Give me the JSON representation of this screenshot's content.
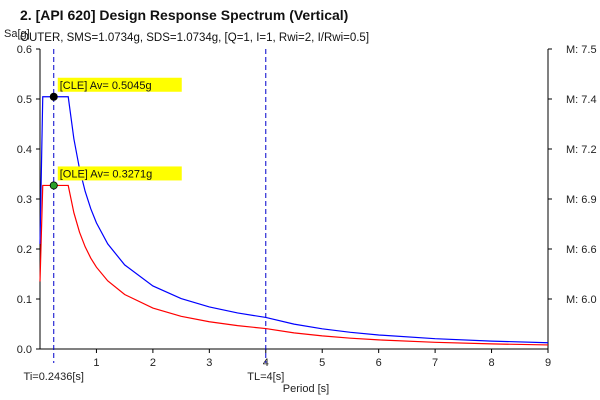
{
  "chart_data": {
    "type": "line",
    "title": "2. [API 620] Design Response Spectrum (Vertical)",
    "subtitle": "OUTER, SMS=1.0734g, SDS=1.0734g, [Q=1, I=1, Rwi=2, I/Rwi=0.5]",
    "xlabel": "Period [s]",
    "ylabel": "Sa[g]",
    "xlim": [
      0,
      9
    ],
    "ylim": [
      0,
      0.6
    ],
    "x_ticks": [
      "1",
      "2",
      "3",
      "4",
      "5",
      "6",
      "7",
      "8",
      "9"
    ],
    "y_ticks": [
      "0.0",
      "0.1",
      "0.2",
      "0.3",
      "0.4",
      "0.5",
      "0.6"
    ],
    "grid": false,
    "colors": {
      "cle": "#0000ff",
      "ole": "#ff0000",
      "marker_cle": "#000000",
      "marker_ole": "#2ca02c",
      "highlight": "#ffff00",
      "vline": "#0000cc"
    },
    "series": [
      {
        "key": "cle",
        "x": [
          0,
          0.0487,
          0.1,
          0.13,
          0.2436,
          0.5,
          0.6,
          0.7,
          0.8,
          0.9,
          1.0,
          1.2,
          1.5,
          2.0,
          2.5,
          3.0,
          3.5,
          4.0,
          4.5,
          5.0,
          5.5,
          6.0,
          7.0,
          8.0,
          9.0
        ],
        "y": [
          0.21,
          0.5045,
          0.5045,
          0.5045,
          0.5045,
          0.5045,
          0.4204,
          0.3604,
          0.3153,
          0.2803,
          0.2523,
          0.2102,
          0.1682,
          0.1261,
          0.1009,
          0.0841,
          0.0721,
          0.0631,
          0.0498,
          0.0404,
          0.0334,
          0.028,
          0.0206,
          0.0158,
          0.0125
        ]
      },
      {
        "key": "ole",
        "x": [
          0,
          0.0487,
          0.1,
          0.13,
          0.2436,
          0.5,
          0.6,
          0.7,
          0.8,
          0.9,
          1.0,
          1.2,
          1.5,
          2.0,
          2.5,
          3.0,
          3.5,
          4.0,
          4.5,
          5.0,
          5.5,
          6.0,
          7.0,
          8.0,
          9.0
        ],
        "y": [
          0.135,
          0.3271,
          0.3271,
          0.3271,
          0.3271,
          0.3271,
          0.2726,
          0.2336,
          0.2044,
          0.1817,
          0.1636,
          0.1363,
          0.109,
          0.0818,
          0.0654,
          0.0545,
          0.0467,
          0.0409,
          0.0323,
          0.0262,
          0.0216,
          0.0182,
          0.0134,
          0.0102,
          0.0081
        ]
      }
    ],
    "annotations": [
      {
        "key": "cle",
        "text": "[CLE] Av= 0.5045g",
        "x": 0.2436,
        "y": 0.5045
      },
      {
        "key": "ole",
        "text": "[OLE] Av= 0.3271g",
        "x": 0.2436,
        "y": 0.3271
      }
    ],
    "vlines": [
      {
        "x": 0.2436,
        "label": "Ti=0.2436[s]"
      },
      {
        "x": 4,
        "label": "TL=4[s]"
      }
    ],
    "right_labels": [
      {
        "text": "M: 7.5",
        "y": 0.6
      },
      {
        "text": "M: 7.4",
        "y": 0.5
      },
      {
        "text": "M: 7.2",
        "y": 0.4
      },
      {
        "text": "M: 6.9",
        "y": 0.3
      },
      {
        "text": "M: 6.6",
        "y": 0.2
      },
      {
        "text": "M: 6.0",
        "y": 0.1
      }
    ]
  }
}
